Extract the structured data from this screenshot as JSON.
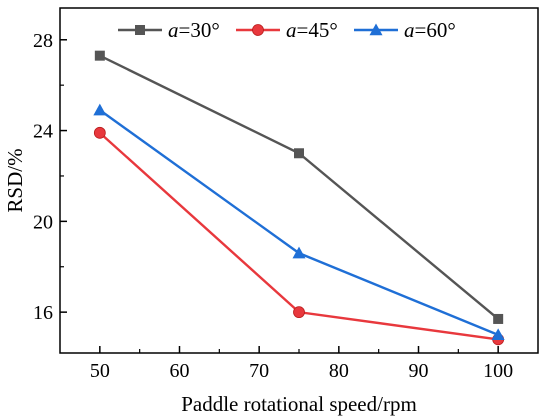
{
  "chart_data": {
    "type": "line",
    "title": "",
    "xlabel": "Paddle rotational speed/rpm",
    "ylabel": "RSD/%",
    "x": [
      50,
      75,
      100
    ],
    "xlim": [
      45,
      105
    ],
    "ylim": [
      14.2,
      29.4
    ],
    "xticks": [
      "50",
      "60",
      "70",
      "80",
      "90",
      "100"
    ],
    "xtick_values": [
      50,
      60,
      70,
      80,
      90,
      100
    ],
    "yticks": [
      "16",
      "20",
      "24",
      "28"
    ],
    "ytick_values": [
      16,
      20,
      24,
      28
    ],
    "grid": false,
    "legend_position": "top",
    "series": [
      {
        "name": "a=30°",
        "name_var": "a",
        "name_rest": "=30°",
        "marker": "square",
        "color": "#555555",
        "values": [
          27.3,
          23.0,
          15.7
        ]
      },
      {
        "name": "a=45°",
        "name_var": "a",
        "name_rest": "=45°",
        "marker": "circle",
        "color": "#e8383d",
        "values": [
          23.9,
          16.0,
          14.8
        ]
      },
      {
        "name": "a=60°",
        "name_var": "a",
        "name_rest": "=60°",
        "marker": "triangle",
        "color": "#1f6fd6",
        "values": [
          24.9,
          18.6,
          15.0
        ]
      }
    ]
  }
}
